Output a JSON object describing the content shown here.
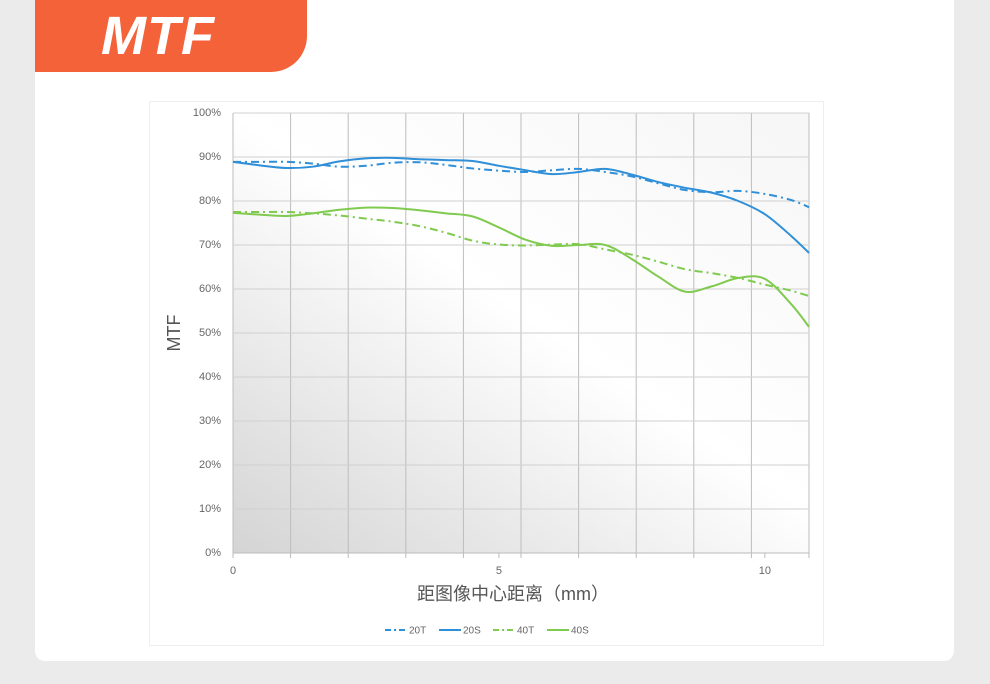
{
  "header": {
    "title": "MTF"
  },
  "chart_data": {
    "type": "line",
    "x_label": "距图像中心距离（mm）",
    "y_label": "MTF",
    "x": [
      0,
      0.5,
      1,
      1.5,
      2,
      2.5,
      3,
      3.5,
      4,
      4.5,
      5,
      5.5,
      6,
      6.5,
      7,
      7.5,
      8,
      8.5,
      9,
      9.5,
      10,
      10.5,
      10.83
    ],
    "xlim": [
      0,
      10.83
    ],
    "xticks": [
      0,
      5,
      10
    ],
    "ylim": [
      0,
      100
    ],
    "yticks": [
      {
        "value": 0,
        "label": "0%"
      },
      {
        "value": 10,
        "label": "10%"
      },
      {
        "value": 20,
        "label": "20%"
      },
      {
        "value": 30,
        "label": "30%"
      },
      {
        "value": 40,
        "label": "40%"
      },
      {
        "value": 50,
        "label": "50%"
      },
      {
        "value": 60,
        "label": "60%"
      },
      {
        "value": 70,
        "label": "70%"
      },
      {
        "value": 80,
        "label": "80%"
      },
      {
        "value": 90,
        "label": "90%"
      },
      {
        "value": 100,
        "label": "100%"
      }
    ],
    "grid": true,
    "legend": "bottom",
    "series": [
      {
        "name": "20T",
        "color": "#2f8fd8",
        "dashed": true,
        "values": [
          88.9,
          88.9,
          88.9,
          88.5,
          87.8,
          88.0,
          88.7,
          88.8,
          88.2,
          87.4,
          86.9,
          86.6,
          87.0,
          87.3,
          86.6,
          85.6,
          84.0,
          82.5,
          82.0,
          82.3,
          81.6,
          80.2,
          78.6
        ]
      },
      {
        "name": "20S",
        "color": "#2f8fd8",
        "dashed": false,
        "values": [
          88.9,
          88.1,
          87.5,
          87.8,
          89.0,
          89.7,
          89.8,
          89.5,
          89.3,
          89.1,
          88.0,
          87.0,
          86.1,
          86.6,
          87.3,
          86.0,
          84.3,
          83.0,
          81.9,
          80.0,
          77.0,
          72.0,
          68.2
        ]
      },
      {
        "name": "40T",
        "color": "#7fca4f",
        "dashed": true,
        "values": [
          77.5,
          77.5,
          77.5,
          77.2,
          76.7,
          76.0,
          75.3,
          74.3,
          72.8,
          71.0,
          70.1,
          69.9,
          70.1,
          70.2,
          69.0,
          67.8,
          66.2,
          64.5,
          63.6,
          62.5,
          61.0,
          59.6,
          58.4
        ]
      },
      {
        "name": "40S",
        "color": "#7fca4f",
        "dashed": false,
        "values": [
          77.3,
          76.9,
          76.6,
          77.2,
          78.0,
          78.5,
          78.4,
          77.9,
          77.2,
          76.5,
          74.0,
          71.2,
          69.8,
          70.0,
          70.0,
          66.8,
          62.8,
          59.4,
          60.6,
          62.5,
          62.3,
          56.5,
          51.4
        ]
      }
    ]
  }
}
